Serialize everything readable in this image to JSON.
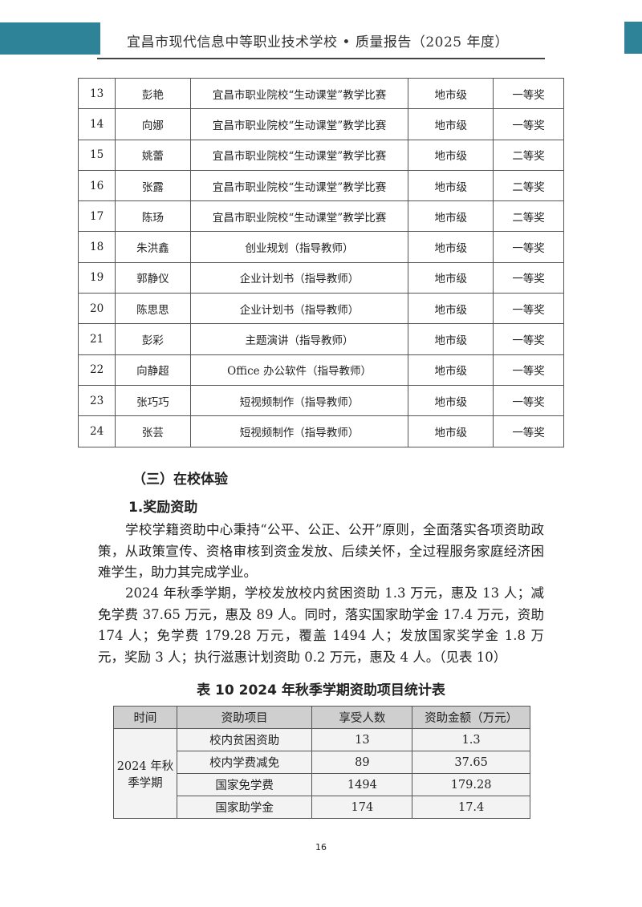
{
  "header": {
    "title": "宜昌市现代信息中等职业技术学校 • 质量报告（2025 年度）",
    "accent_color": "#2e8399"
  },
  "awards_table": {
    "rows": [
      [
        "13",
        "彭艳",
        "宜昌市职业院校“生动课堂”教学比赛",
        "地市级",
        "一等奖"
      ],
      [
        "14",
        "向娜",
        "宜昌市职业院校“生动课堂”教学比赛",
        "地市级",
        "一等奖"
      ],
      [
        "15",
        "姚蕾",
        "宜昌市职业院校“生动课堂”教学比赛",
        "地市级",
        "二等奖"
      ],
      [
        "16",
        "张露",
        "宜昌市职业院校“生动课堂”教学比赛",
        "地市级",
        "二等奖"
      ],
      [
        "17",
        "陈玚",
        "宜昌市职业院校“生动课堂”教学比赛",
        "地市级",
        "二等奖"
      ],
      [
        "18",
        "朱洪鑫",
        "创业规划（指导教师）",
        "地市级",
        "一等奖"
      ],
      [
        "19",
        "郭静仪",
        "企业计划书（指导教师）",
        "地市级",
        "一等奖"
      ],
      [
        "20",
        "陈思思",
        "企业计划书（指导教师）",
        "地市级",
        "一等奖"
      ],
      [
        "21",
        "彭彩",
        "主题演讲（指导教师）",
        "地市级",
        "一等奖"
      ],
      [
        "22",
        "向静超",
        "Office 办公软件（指导教师）",
        "地市级",
        "一等奖"
      ],
      [
        "23",
        "张巧巧",
        "短视频制作（指导教师）",
        "地市级",
        "一等奖"
      ],
      [
        "24",
        "张芸",
        "短视频制作（指导教师）",
        "地市级",
        "一等奖"
      ]
    ]
  },
  "section": {
    "heading": "（三）在校体验",
    "subheading": "1.奖励资助",
    "paragraphs": [
      "学校学籍资助中心秉持“公平、公正、公开”原则，全面落实各项资助政策，从政策宣传、资格审核到资金发放、后续关怀，全过程服务家庭经济困难学生，助力其完成学业。",
      "2024 年秋季学期，学校发放校内贫困资助 1.3 万元，惠及 13 人；减免学费 37.65 万元，惠及 89 人。同时，落实国家助学金 17.4 万元，资助 174 人；免学费 179.28 万元，覆盖 1494 人；发放国家奖学金 1.8 万元，奖励 3 人；执行滋惠计划资助 0.2 万元，惠及 4 人。（见表 10）"
    ]
  },
  "aid_table": {
    "caption": "表 10 2024 年秋季学期资助项目统计表",
    "headers": [
      "时间",
      "资助项目",
      "享受人数",
      "资助金额（万元）"
    ],
    "period": "2024 年秋季学期",
    "rows": [
      [
        "校内贫困资助",
        "13",
        "1.3"
      ],
      [
        "校内学费减免",
        "89",
        "37.65"
      ],
      [
        "国家免学费",
        "1494",
        "179.28"
      ],
      [
        "国家助学金",
        "174",
        "17.4"
      ]
    ]
  },
  "page_number": "16"
}
